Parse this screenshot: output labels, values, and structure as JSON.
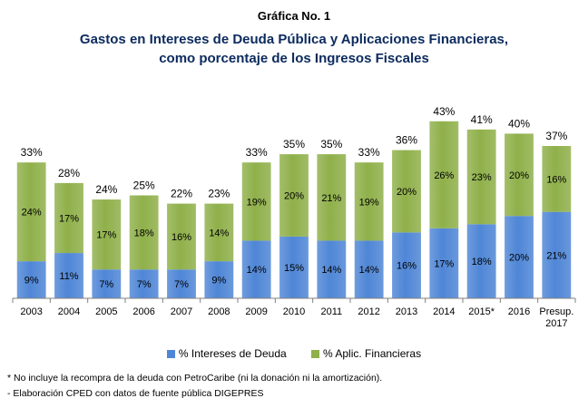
{
  "title_line1": "Gráfica No. 1",
  "title_line2": "Gastos en Intereses de Deuda Pública y Aplicaciones Financieras,",
  "title_line3": "como porcentaje de los Ingresos Fiscales",
  "colors": {
    "intereses": "#4f86d6",
    "aplic": "#8fb04a"
  },
  "chart_data": {
    "type": "bar",
    "stacked": true,
    "title": "Gastos en Intereses de Deuda Pública y Aplicaciones Financieras, como porcentaje de los Ingresos Fiscales",
    "categories": [
      "2003",
      "2004",
      "2005",
      "2006",
      "2007",
      "2008",
      "2009",
      "2010",
      "2011",
      "2012",
      "2013",
      "2014",
      "2015*",
      "2016",
      "Presup. 2017"
    ],
    "series": [
      {
        "name": "% Intereses de Deuda",
        "values": [
          9,
          11,
          7,
          7,
          7,
          9,
          14,
          15,
          14,
          14,
          16,
          17,
          18,
          20,
          21
        ]
      },
      {
        "name": "% Aplic. Financieras",
        "values": [
          24,
          17,
          17,
          18,
          16,
          14,
          19,
          20,
          21,
          19,
          20,
          26,
          23,
          20,
          16
        ]
      }
    ],
    "totals": [
      33,
      28,
      24,
      25,
      22,
      23,
      33,
      35,
      35,
      33,
      36,
      43,
      41,
      40,
      37
    ],
    "legend_position": "bottom",
    "grid": false
  },
  "notes": [
    "* No incluye la recompra de la deuda con PetroCaribe (ni la donación ni la amortización).",
    "- Elaboración CPED con datos de fuente pública DIGEPRES"
  ]
}
